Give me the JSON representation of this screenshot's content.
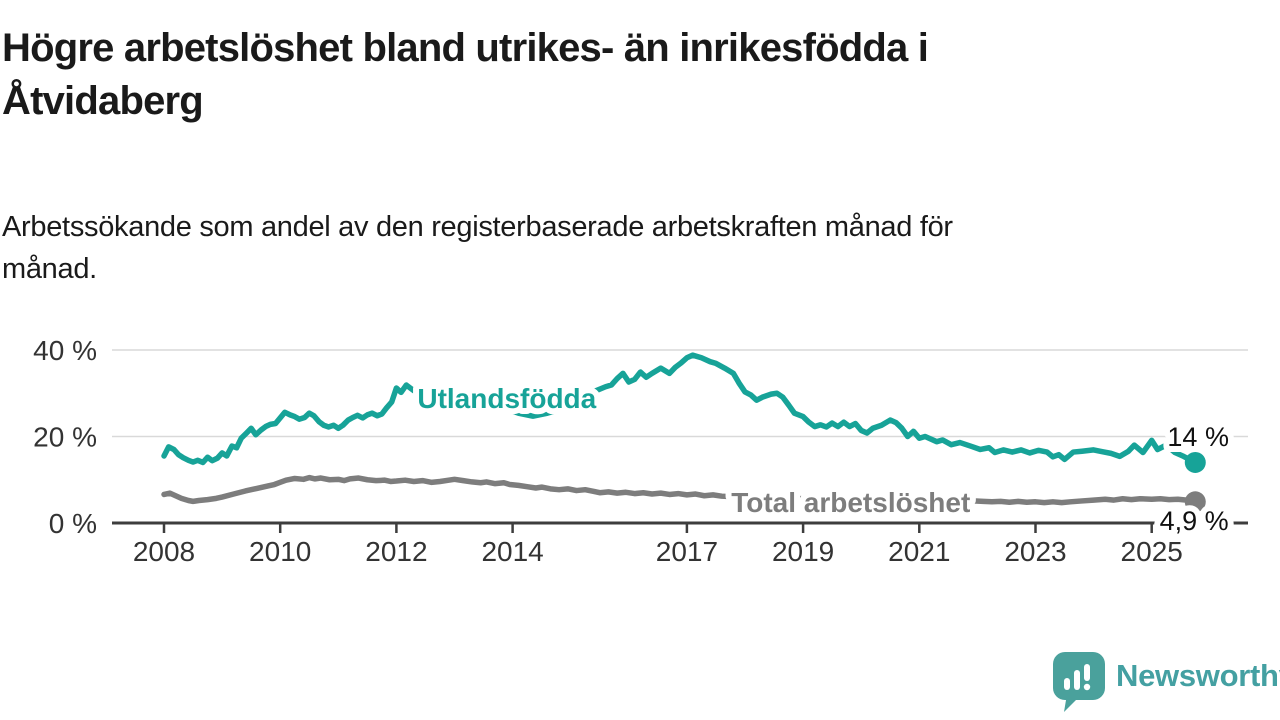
{
  "header": {
    "title": "Högre arbetslöshet bland utrikes- än inrikesfödda i Åtvidaberg",
    "title_lines": [
      "Högre arbetslöshet bland utrikes- än inrikesfödda i",
      "Åtvidaberg"
    ],
    "subtitle": "Arbetssökande som andel av den registerbaserade arbetskraften månad för månad.",
    "subtitle_lines": [
      "Arbetssökande som andel av den registerbaserade arbetskraften månad för",
      "månad."
    ]
  },
  "footer": {
    "brand": "Newsworthy",
    "logo_icon": "bar-chart-speech-bubble"
  },
  "colors": {
    "foreign_born_line": "#17a398",
    "total_line": "#7d7d7d",
    "axis": "#3d3d3d",
    "grid": "#d9d9d9",
    "tick_text": "#333333",
    "end_label_text": "#111111",
    "brand_teal": "#44a0a2",
    "title_text": "#1a1a1a"
  },
  "chart_data": {
    "type": "line",
    "title": "Högre arbetslöshet bland utrikes- än inrikesfödda i Åtvidaberg",
    "subtitle": "Arbetssökande som andel av den registerbaserade arbetskraften månad för månad.",
    "unit": "%",
    "grid": "horizontal",
    "legend_position": "inline-labels",
    "xlim": [
      2007.1,
      2026.66
    ],
    "ylim": [
      0,
      45
    ],
    "x_ticks": [
      {
        "value": 2008,
        "label": "2008"
      },
      {
        "value": 2010,
        "label": "2010"
      },
      {
        "value": 2012,
        "label": "2012"
      },
      {
        "value": 2014,
        "label": "2014"
      },
      {
        "value": 2017,
        "label": "2017"
      },
      {
        "value": 2019,
        "label": "2019"
      },
      {
        "value": 2021,
        "label": "2021"
      },
      {
        "value": 2023,
        "label": "2023"
      },
      {
        "value": 2025,
        "label": "2025"
      }
    ],
    "y_ticks": [
      {
        "value": 0,
        "label": "0 %"
      },
      {
        "value": 20,
        "label": "20 %"
      },
      {
        "value": 40,
        "label": "40 %"
      }
    ],
    "series": [
      {
        "id": "utlandsfodda",
        "name": "Utlandsfödda",
        "color": "#17a398",
        "line_width": 5.5,
        "label_anchor": {
          "x": 2013.9,
          "y": 28.9
        },
        "end_value": 14.0,
        "end_label": "14 %",
        "end_label_anchor": {
          "x": 2025.8,
          "y": 19.9
        },
        "points": [
          [
            2008.0,
            15.5
          ],
          [
            2008.08,
            17.6
          ],
          [
            2008.17,
            17.0
          ],
          [
            2008.25,
            15.8
          ],
          [
            2008.33,
            15.1
          ],
          [
            2008.42,
            14.5
          ],
          [
            2008.5,
            14.1
          ],
          [
            2008.58,
            14.5
          ],
          [
            2008.67,
            14.0
          ],
          [
            2008.75,
            15.2
          ],
          [
            2008.83,
            14.4
          ],
          [
            2008.92,
            15.0
          ],
          [
            2009.0,
            16.2
          ],
          [
            2009.08,
            15.5
          ],
          [
            2009.17,
            17.8
          ],
          [
            2009.25,
            17.4
          ],
          [
            2009.33,
            19.6
          ],
          [
            2009.42,
            20.8
          ],
          [
            2009.5,
            21.9
          ],
          [
            2009.58,
            20.4
          ],
          [
            2009.67,
            21.5
          ],
          [
            2009.75,
            22.3
          ],
          [
            2009.83,
            22.8
          ],
          [
            2009.92,
            23.0
          ],
          [
            2010.0,
            24.3
          ],
          [
            2010.08,
            25.6
          ],
          [
            2010.17,
            25.0
          ],
          [
            2010.25,
            24.6
          ],
          [
            2010.33,
            24.0
          ],
          [
            2010.42,
            24.4
          ],
          [
            2010.5,
            25.4
          ],
          [
            2010.58,
            24.8
          ],
          [
            2010.67,
            23.4
          ],
          [
            2010.75,
            22.6
          ],
          [
            2010.83,
            22.2
          ],
          [
            2010.92,
            22.6
          ],
          [
            2011.0,
            21.9
          ],
          [
            2011.08,
            22.6
          ],
          [
            2011.17,
            23.8
          ],
          [
            2011.25,
            24.4
          ],
          [
            2011.33,
            24.9
          ],
          [
            2011.42,
            24.3
          ],
          [
            2011.5,
            25.0
          ],
          [
            2011.58,
            25.4
          ],
          [
            2011.67,
            24.8
          ],
          [
            2011.75,
            25.2
          ],
          [
            2011.83,
            26.6
          ],
          [
            2011.92,
            28.0
          ],
          [
            2012.0,
            31.2
          ],
          [
            2012.08,
            30.2
          ],
          [
            2012.17,
            31.9
          ],
          [
            2012.3,
            30.6
          ],
          [
            2012.5,
            29.6
          ],
          [
            2012.7,
            30.0
          ],
          [
            2012.9,
            29.3
          ],
          [
            2013.1,
            28.6
          ],
          [
            2013.3,
            28.0
          ],
          [
            2013.5,
            27.6
          ],
          [
            2013.7,
            27.0
          ],
          [
            2013.9,
            26.3
          ],
          [
            2014.1,
            25.4
          ],
          [
            2014.35,
            24.7
          ],
          [
            2014.6,
            25.4
          ],
          [
            2014.8,
            26.2
          ],
          [
            2015.0,
            27.5
          ],
          [
            2015.2,
            29.0
          ],
          [
            2015.4,
            30.4
          ],
          [
            2015.6,
            31.5
          ],
          [
            2015.7,
            31.9
          ],
          [
            2015.8,
            33.4
          ],
          [
            2015.9,
            34.6
          ],
          [
            2016.0,
            32.6
          ],
          [
            2016.1,
            33.2
          ],
          [
            2016.2,
            34.9
          ],
          [
            2016.3,
            33.7
          ],
          [
            2016.4,
            34.6
          ],
          [
            2016.55,
            35.8
          ],
          [
            2016.7,
            34.6
          ],
          [
            2016.8,
            36.0
          ],
          [
            2016.9,
            37.0
          ],
          [
            2017.0,
            38.2
          ],
          [
            2017.1,
            38.8
          ],
          [
            2017.25,
            38.2
          ],
          [
            2017.4,
            37.3
          ],
          [
            2017.5,
            36.9
          ],
          [
            2017.65,
            35.8
          ],
          [
            2017.8,
            34.6
          ],
          [
            2017.9,
            32.3
          ],
          [
            2018.0,
            30.3
          ],
          [
            2018.1,
            29.6
          ],
          [
            2018.2,
            28.4
          ],
          [
            2018.3,
            29.1
          ],
          [
            2018.45,
            29.8
          ],
          [
            2018.55,
            30.0
          ],
          [
            2018.65,
            29.1
          ],
          [
            2018.75,
            27.3
          ],
          [
            2018.85,
            25.4
          ],
          [
            2019.0,
            24.6
          ],
          [
            2019.1,
            23.3
          ],
          [
            2019.2,
            22.3
          ],
          [
            2019.3,
            22.7
          ],
          [
            2019.4,
            22.2
          ],
          [
            2019.5,
            23.1
          ],
          [
            2019.6,
            22.3
          ],
          [
            2019.7,
            23.3
          ],
          [
            2019.8,
            22.3
          ],
          [
            2019.9,
            23.0
          ],
          [
            2020.0,
            21.4
          ],
          [
            2020.1,
            20.8
          ],
          [
            2020.2,
            21.9
          ],
          [
            2020.35,
            22.6
          ],
          [
            2020.5,
            23.8
          ],
          [
            2020.6,
            23.2
          ],
          [
            2020.7,
            21.9
          ],
          [
            2020.8,
            20.0
          ],
          [
            2020.9,
            21.2
          ],
          [
            2021.0,
            19.6
          ],
          [
            2021.1,
            20.0
          ],
          [
            2021.3,
            18.8
          ],
          [
            2021.4,
            19.2
          ],
          [
            2021.55,
            18.1
          ],
          [
            2021.7,
            18.6
          ],
          [
            2021.9,
            17.7
          ],
          [
            2022.05,
            17.0
          ],
          [
            2022.2,
            17.4
          ],
          [
            2022.3,
            16.3
          ],
          [
            2022.45,
            16.9
          ],
          [
            2022.6,
            16.4
          ],
          [
            2022.75,
            16.9
          ],
          [
            2022.9,
            16.2
          ],
          [
            2023.05,
            16.8
          ],
          [
            2023.2,
            16.4
          ],
          [
            2023.3,
            15.3
          ],
          [
            2023.4,
            15.8
          ],
          [
            2023.5,
            14.7
          ],
          [
            2023.65,
            16.4
          ],
          [
            2023.8,
            16.6
          ],
          [
            2024.0,
            16.9
          ],
          [
            2024.15,
            16.5
          ],
          [
            2024.3,
            16.1
          ],
          [
            2024.45,
            15.4
          ],
          [
            2024.6,
            16.6
          ],
          [
            2024.7,
            18.0
          ],
          [
            2024.85,
            16.3
          ],
          [
            2025.0,
            19.1
          ],
          [
            2025.1,
            17.0
          ],
          [
            2025.25,
            18.0
          ],
          [
            2025.4,
            16.3
          ],
          [
            2025.55,
            15.4
          ],
          [
            2025.75,
            14.0
          ]
        ]
      },
      {
        "id": "total-arbetsloshet",
        "name": "Total arbetslöshet",
        "color": "#7d7d7d",
        "line_width": 5.5,
        "label_anchor": {
          "x": 2019.82,
          "y": 4.85
        },
        "end_value": 4.9,
        "end_label": "4,9 %",
        "end_label_anchor": {
          "x": 2025.73,
          "y": 0.46
        },
        "points": [
          [
            2008.0,
            6.6
          ],
          [
            2008.1,
            6.9
          ],
          [
            2008.2,
            6.3
          ],
          [
            2008.3,
            5.7
          ],
          [
            2008.42,
            5.2
          ],
          [
            2008.5,
            5.0
          ],
          [
            2008.6,
            5.2
          ],
          [
            2008.75,
            5.4
          ],
          [
            2008.9,
            5.7
          ],
          [
            2009.0,
            6.0
          ],
          [
            2009.2,
            6.7
          ],
          [
            2009.4,
            7.4
          ],
          [
            2009.6,
            8.0
          ],
          [
            2009.8,
            8.6
          ],
          [
            2009.9,
            8.9
          ],
          [
            2010.0,
            9.4
          ],
          [
            2010.1,
            9.9
          ],
          [
            2010.25,
            10.3
          ],
          [
            2010.4,
            10.1
          ],
          [
            2010.5,
            10.5
          ],
          [
            2010.6,
            10.2
          ],
          [
            2010.7,
            10.4
          ],
          [
            2010.85,
            10.0
          ],
          [
            2011.0,
            10.1
          ],
          [
            2011.1,
            9.8
          ],
          [
            2011.2,
            10.2
          ],
          [
            2011.35,
            10.4
          ],
          [
            2011.5,
            10.0
          ],
          [
            2011.65,
            9.8
          ],
          [
            2011.8,
            9.9
          ],
          [
            2011.9,
            9.6
          ],
          [
            2012.0,
            9.7
          ],
          [
            2012.15,
            9.9
          ],
          [
            2012.3,
            9.6
          ],
          [
            2012.45,
            9.8
          ],
          [
            2012.6,
            9.4
          ],
          [
            2012.75,
            9.6
          ],
          [
            2012.9,
            9.9
          ],
          [
            2013.0,
            10.1
          ],
          [
            2013.15,
            9.8
          ],
          [
            2013.3,
            9.5
          ],
          [
            2013.45,
            9.3
          ],
          [
            2013.55,
            9.5
          ],
          [
            2013.7,
            9.1
          ],
          [
            2013.85,
            9.3
          ],
          [
            2013.95,
            8.9
          ],
          [
            2014.1,
            8.7
          ],
          [
            2014.25,
            8.4
          ],
          [
            2014.4,
            8.1
          ],
          [
            2014.5,
            8.3
          ],
          [
            2014.65,
            7.9
          ],
          [
            2014.8,
            7.7
          ],
          [
            2014.95,
            7.9
          ],
          [
            2015.1,
            7.5
          ],
          [
            2015.25,
            7.7
          ],
          [
            2015.4,
            7.3
          ],
          [
            2015.5,
            7.0
          ],
          [
            2015.65,
            7.2
          ],
          [
            2015.8,
            6.9
          ],
          [
            2015.95,
            7.1
          ],
          [
            2016.1,
            6.8
          ],
          [
            2016.25,
            7.0
          ],
          [
            2016.4,
            6.7
          ],
          [
            2016.55,
            6.9
          ],
          [
            2016.7,
            6.6
          ],
          [
            2016.85,
            6.8
          ],
          [
            2017.0,
            6.5
          ],
          [
            2017.15,
            6.7
          ],
          [
            2017.3,
            6.3
          ],
          [
            2017.45,
            6.5
          ],
          [
            2017.6,
            6.2
          ],
          [
            2017.9,
            6.0
          ],
          [
            2018.3,
            5.9
          ],
          [
            2018.7,
            5.7
          ],
          [
            2019.1,
            5.6
          ],
          [
            2019.5,
            5.5
          ],
          [
            2019.9,
            5.9
          ],
          [
            2020.2,
            6.2
          ],
          [
            2020.6,
            6.0
          ],
          [
            2021.0,
            5.7
          ],
          [
            2021.4,
            5.4
          ],
          [
            2021.8,
            5.2
          ],
          [
            2022.1,
            5.0
          ],
          [
            2022.25,
            4.9
          ],
          [
            2022.4,
            5.0
          ],
          [
            2022.55,
            4.8
          ],
          [
            2022.7,
            5.0
          ],
          [
            2022.85,
            4.8
          ],
          [
            2023.0,
            4.9
          ],
          [
            2023.15,
            4.7
          ],
          [
            2023.3,
            4.9
          ],
          [
            2023.45,
            4.7
          ],
          [
            2023.6,
            4.9
          ],
          [
            2023.8,
            5.1
          ],
          [
            2024.0,
            5.3
          ],
          [
            2024.2,
            5.5
          ],
          [
            2024.35,
            5.3
          ],
          [
            2024.5,
            5.6
          ],
          [
            2024.65,
            5.4
          ],
          [
            2024.8,
            5.6
          ],
          [
            2025.0,
            5.5
          ],
          [
            2025.15,
            5.6
          ],
          [
            2025.3,
            5.4
          ],
          [
            2025.45,
            5.5
          ],
          [
            2025.6,
            5.3
          ],
          [
            2025.75,
            4.9
          ]
        ]
      }
    ]
  }
}
